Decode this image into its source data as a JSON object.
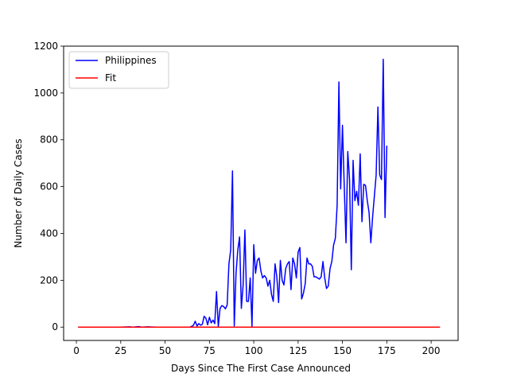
{
  "chart_data": {
    "type": "line",
    "title": "",
    "xlabel": "Days Since The First Case Announced",
    "ylabel": "Number of Daily Cases",
    "xlim": [
      -7.2,
      215.2
    ],
    "ylim": [
      -57,
      1200
    ],
    "xticks": [
      0,
      25,
      50,
      75,
      100,
      125,
      150,
      175,
      200
    ],
    "yticks": [
      0,
      200,
      400,
      600,
      800,
      1000,
      1200
    ],
    "legend_position": "top-left",
    "grid": false,
    "series": [
      {
        "name": "Philippines",
        "color": "#0000ff",
        "points": [
          [
            1,
            0
          ],
          [
            5,
            0
          ],
          [
            10,
            0
          ],
          [
            15,
            0
          ],
          [
            20,
            0
          ],
          [
            25,
            0
          ],
          [
            30,
            1
          ],
          [
            32,
            0
          ],
          [
            35,
            2
          ],
          [
            37,
            0
          ],
          [
            40,
            1
          ],
          [
            45,
            0
          ],
          [
            50,
            0
          ],
          [
            55,
            0
          ],
          [
            60,
            0
          ],
          [
            63,
            0
          ],
          [
            64,
            0
          ],
          [
            65,
            3
          ],
          [
            66,
            8
          ],
          [
            67,
            25
          ],
          [
            68,
            5
          ],
          [
            69,
            15
          ],
          [
            70,
            8
          ],
          [
            71,
            12
          ],
          [
            72,
            46
          ],
          [
            73,
            38
          ],
          [
            74,
            10
          ],
          [
            75,
            42
          ],
          [
            76,
            18
          ],
          [
            77,
            30
          ],
          [
            78,
            15
          ],
          [
            79,
            152
          ],
          [
            80,
            3
          ],
          [
            81,
            80
          ],
          [
            82,
            92
          ],
          [
            83,
            88
          ],
          [
            84,
            78
          ],
          [
            85,
            95
          ],
          [
            86,
            270
          ],
          [
            87,
            330
          ],
          [
            88,
            667
          ],
          [
            89,
            5
          ],
          [
            90,
            230
          ],
          [
            91,
            330
          ],
          [
            92,
            385
          ],
          [
            93,
            80
          ],
          [
            94,
            180
          ],
          [
            95,
            415
          ],
          [
            96,
            110
          ],
          [
            97,
            110
          ],
          [
            98,
            210
          ],
          [
            99,
            3
          ],
          [
            100,
            352
          ],
          [
            101,
            230
          ],
          [
            102,
            285
          ],
          [
            103,
            295
          ],
          [
            104,
            240
          ],
          [
            105,
            210
          ],
          [
            106,
            220
          ],
          [
            107,
            210
          ],
          [
            108,
            175
          ],
          [
            109,
            200
          ],
          [
            110,
            140
          ],
          [
            111,
            110
          ],
          [
            112,
            270
          ],
          [
            113,
            215
          ],
          [
            114,
            105
          ],
          [
            115,
            285
          ],
          [
            116,
            200
          ],
          [
            117,
            180
          ],
          [
            118,
            250
          ],
          [
            119,
            270
          ],
          [
            120,
            280
          ],
          [
            121,
            160
          ],
          [
            122,
            295
          ],
          [
            123,
            270
          ],
          [
            124,
            210
          ],
          [
            125,
            320
          ],
          [
            126,
            340
          ],
          [
            127,
            120
          ],
          [
            128,
            145
          ],
          [
            129,
            185
          ],
          [
            130,
            295
          ],
          [
            131,
            270
          ],
          [
            132,
            270
          ],
          [
            133,
            260
          ],
          [
            134,
            215
          ],
          [
            135,
            215
          ],
          [
            136,
            210
          ],
          [
            137,
            205
          ],
          [
            138,
            215
          ],
          [
            139,
            280
          ],
          [
            140,
            210
          ],
          [
            141,
            165
          ],
          [
            142,
            175
          ],
          [
            143,
            250
          ],
          [
            144,
            280
          ],
          [
            145,
            350
          ],
          [
            146,
            380
          ],
          [
            147,
            520
          ],
          [
            148,
            1047
          ],
          [
            149,
            590
          ],
          [
            150,
            862
          ],
          [
            151,
            605
          ],
          [
            152,
            360
          ],
          [
            153,
            750
          ],
          [
            154,
            630
          ],
          [
            155,
            245
          ],
          [
            156,
            712
          ],
          [
            157,
            540
          ],
          [
            158,
            580
          ],
          [
            159,
            520
          ],
          [
            160,
            740
          ],
          [
            161,
            450
          ],
          [
            162,
            610
          ],
          [
            163,
            605
          ],
          [
            164,
            540
          ],
          [
            165,
            490
          ],
          [
            166,
            360
          ],
          [
            167,
            470
          ],
          [
            168,
            560
          ],
          [
            169,
            650
          ],
          [
            170,
            940
          ],
          [
            171,
            650
          ],
          [
            172,
            630
          ],
          [
            173,
            1144
          ],
          [
            174,
            468
          ],
          [
            175,
            775
          ]
        ]
      },
      {
        "name": "Fit",
        "color": "#ff0000",
        "points": [
          [
            1,
            0
          ],
          [
            205,
            0
          ]
        ]
      }
    ]
  }
}
